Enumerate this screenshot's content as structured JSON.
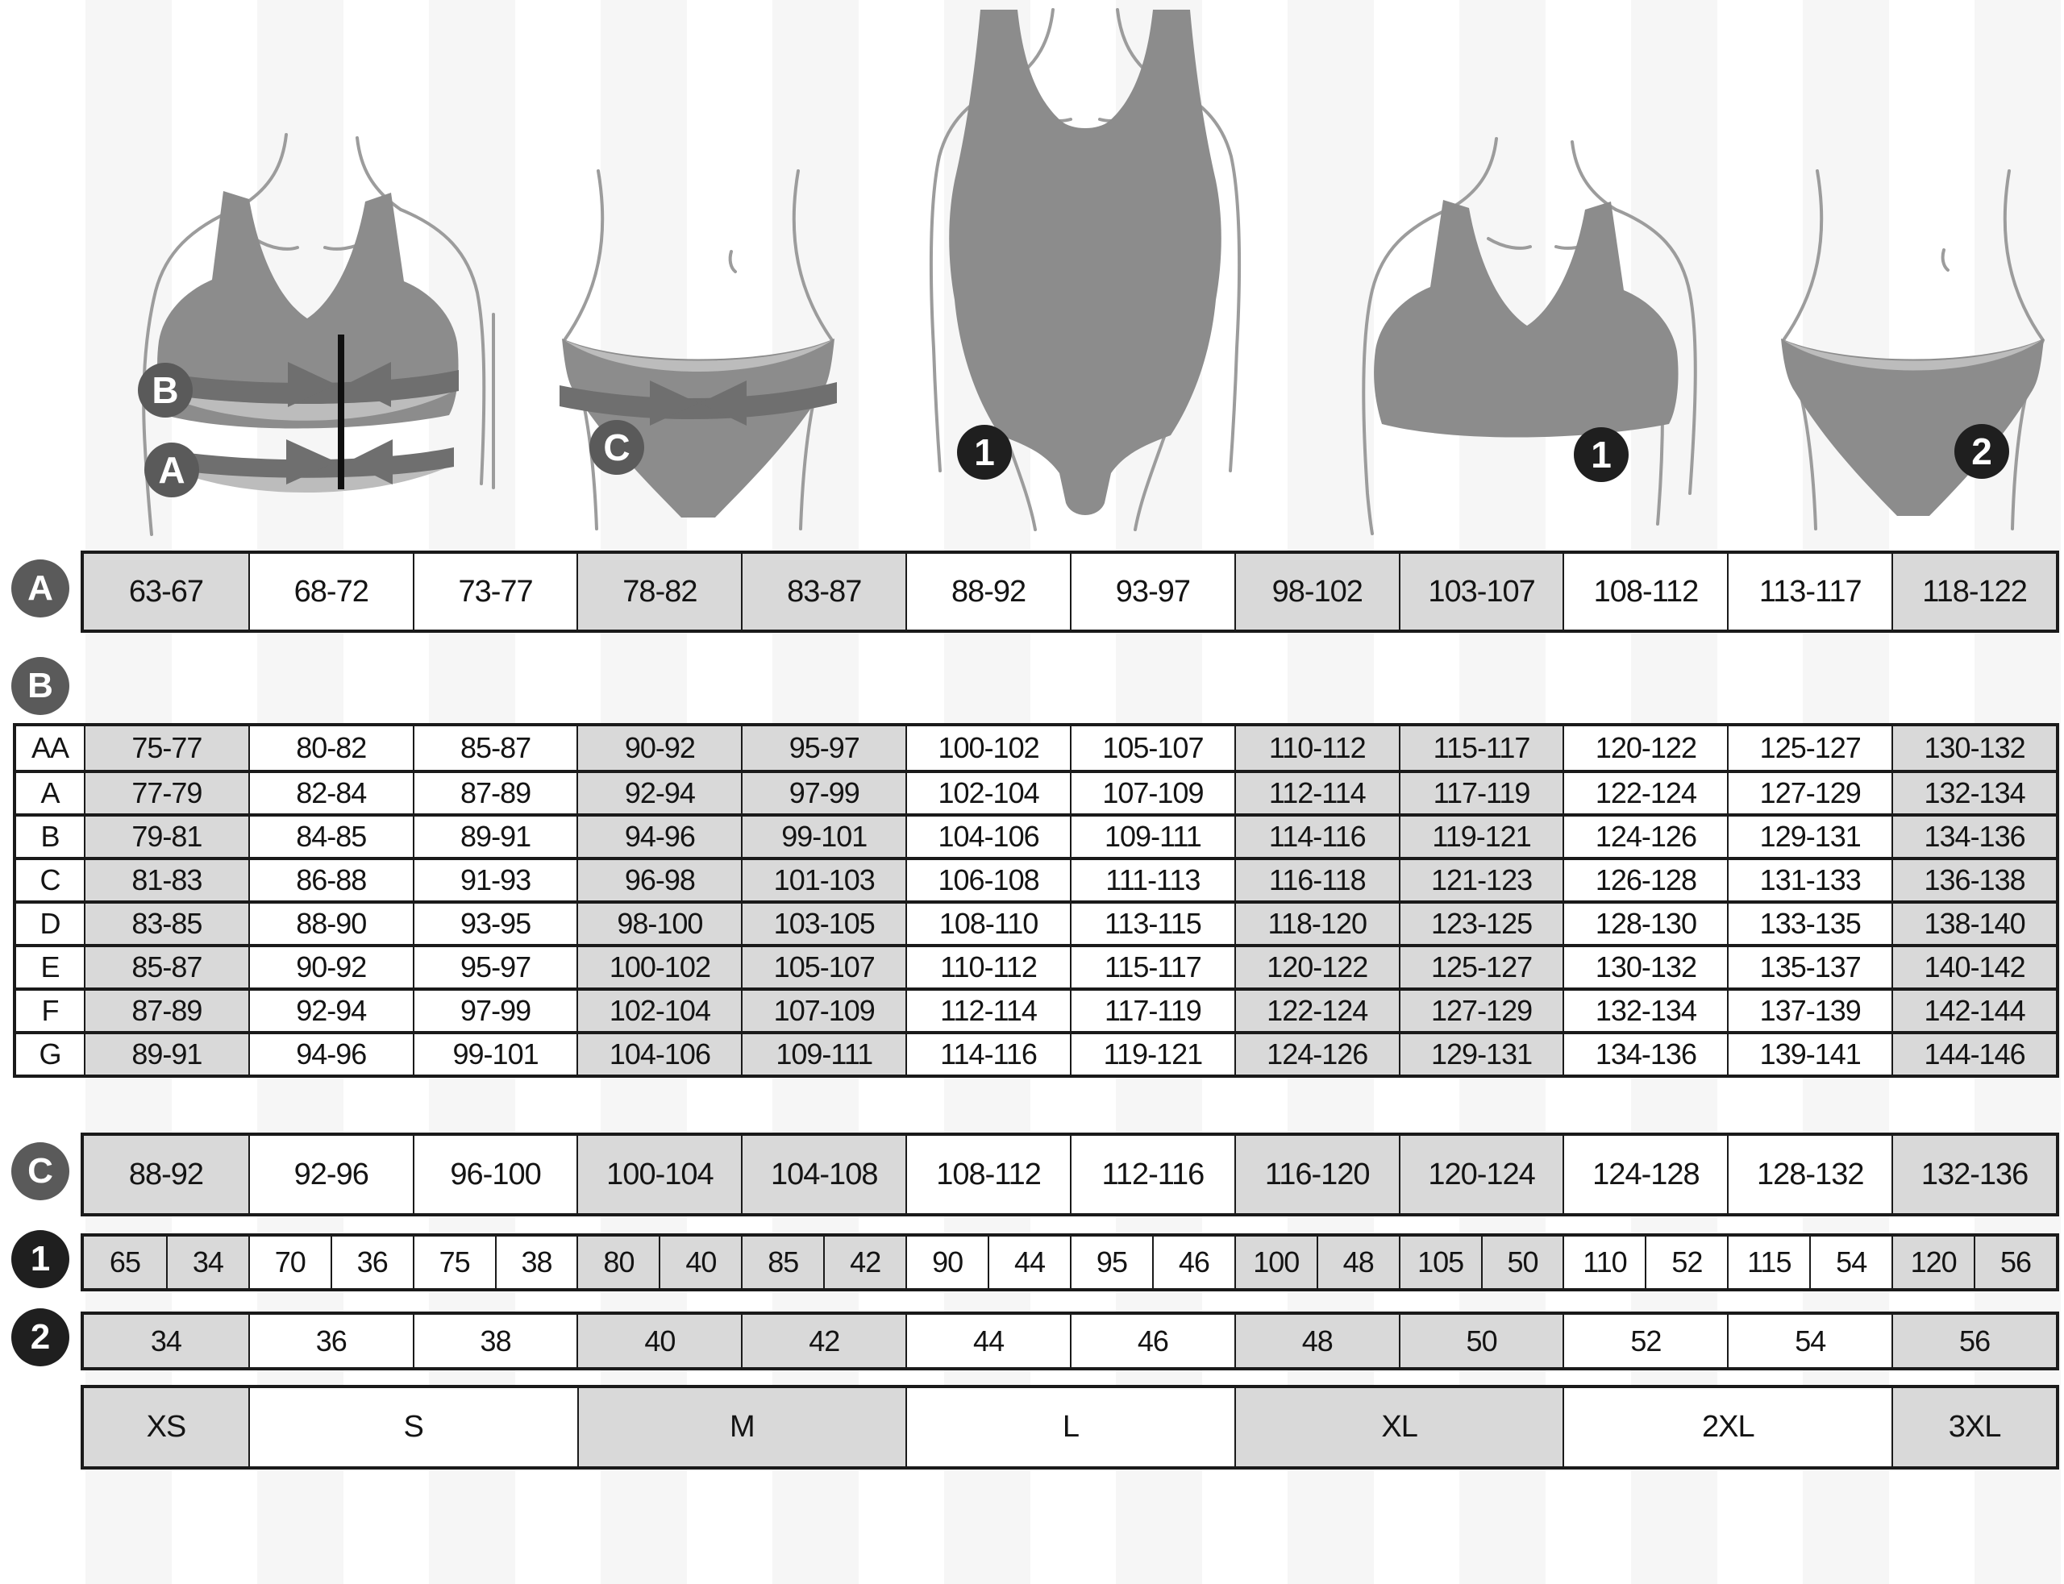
{
  "measure_labels": {
    "underbust": "A",
    "bust": "B",
    "hips": "C",
    "bra_size": "1",
    "brief_size": "2"
  },
  "colors": {
    "cell_gray": "#d9d9d9",
    "cell_white": "#ffffff",
    "table_border": "#1a1a1a",
    "circle_gray": "#5a5a5a",
    "circle_black": "#1f1f1f",
    "garment_gray": "#8c8c8c",
    "band_dark": "#6f6f6f",
    "band_light": "#bcbcbc"
  },
  "layout": {
    "column_shade_pattern": [
      1,
      0,
      0,
      1,
      1,
      0,
      0,
      1,
      1,
      0,
      0,
      1
    ]
  },
  "tables": {
    "underbust": {
      "label": "A",
      "values": [
        "63-67",
        "68-72",
        "73-77",
        "78-82",
        "83-87",
        "88-92",
        "93-97",
        "98-102",
        "103-107",
        "108-112",
        "113-117",
        "118-122"
      ]
    },
    "bust": {
      "label": "B",
      "row_labels": [
        "AA",
        "A",
        "B",
        "C",
        "D",
        "E",
        "F",
        "G"
      ],
      "rows": [
        [
          "75-77",
          "80-82",
          "85-87",
          "90-92",
          "95-97",
          "100-102",
          "105-107",
          "110-112",
          "115-117",
          "120-122",
          "125-127",
          "130-132"
        ],
        [
          "77-79",
          "82-84",
          "87-89",
          "92-94",
          "97-99",
          "102-104",
          "107-109",
          "112-114",
          "117-119",
          "122-124",
          "127-129",
          "132-134"
        ],
        [
          "79-81",
          "84-85",
          "89-91",
          "94-96",
          "99-101",
          "104-106",
          "109-111",
          "114-116",
          "119-121",
          "124-126",
          "129-131",
          "134-136"
        ],
        [
          "81-83",
          "86-88",
          "91-93",
          "96-98",
          "101-103",
          "106-108",
          "111-113",
          "116-118",
          "121-123",
          "126-128",
          "131-133",
          "136-138"
        ],
        [
          "83-85",
          "88-90",
          "93-95",
          "98-100",
          "103-105",
          "108-110",
          "113-115",
          "118-120",
          "123-125",
          "128-130",
          "133-135",
          "138-140"
        ],
        [
          "85-87",
          "90-92",
          "95-97",
          "100-102",
          "105-107",
          "110-112",
          "115-117",
          "120-122",
          "125-127",
          "130-132",
          "135-137",
          "140-142"
        ],
        [
          "87-89",
          "92-94",
          "97-99",
          "102-104",
          "107-109",
          "112-114",
          "117-119",
          "122-124",
          "127-129",
          "132-134",
          "137-139",
          "142-144"
        ],
        [
          "89-91",
          "94-96",
          "99-101",
          "104-106",
          "109-111",
          "114-116",
          "119-121",
          "124-126",
          "129-131",
          "134-136",
          "139-141",
          "144-146"
        ]
      ]
    },
    "hips": {
      "label": "C",
      "values": [
        "88-92",
        "92-96",
        "96-100",
        "100-104",
        "104-108",
        "108-112",
        "112-116",
        "116-120",
        "120-124",
        "124-128",
        "128-132",
        "132-136"
      ]
    },
    "bra_sizes": {
      "label": "1",
      "pairs": [
        [
          "65",
          "34"
        ],
        [
          "70",
          "36"
        ],
        [
          "75",
          "38"
        ],
        [
          "80",
          "40"
        ],
        [
          "85",
          "42"
        ],
        [
          "90",
          "44"
        ],
        [
          "95",
          "46"
        ],
        [
          "100",
          "48"
        ],
        [
          "105",
          "50"
        ],
        [
          "110",
          "52"
        ],
        [
          "115",
          "54"
        ],
        [
          "120",
          "56"
        ]
      ]
    },
    "brief_sizes": {
      "label": "2",
      "values": [
        "34",
        "36",
        "38",
        "40",
        "42",
        "44",
        "46",
        "48",
        "50",
        "52",
        "54",
        "56"
      ]
    },
    "intl_sizes": {
      "blocks": [
        {
          "label": "XS",
          "span": 1
        },
        {
          "label": "S",
          "span": 2
        },
        {
          "label": "M",
          "span": 2
        },
        {
          "label": "L",
          "span": 2
        },
        {
          "label": "XL",
          "span": 2
        },
        {
          "label": "2XL",
          "span": 2
        },
        {
          "label": "3XL",
          "span": 1
        }
      ]
    }
  }
}
